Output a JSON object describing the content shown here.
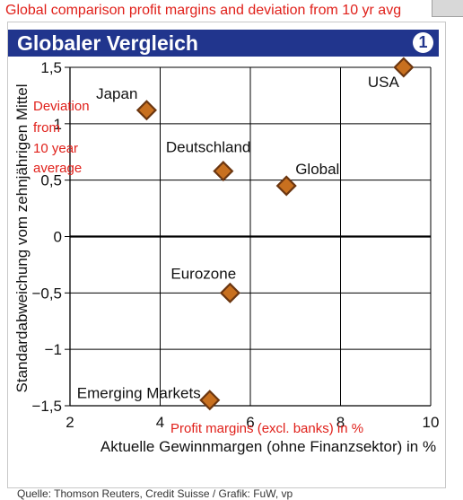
{
  "header": {
    "caption": "Global comparison profit margins and deviation from 10 yr avg",
    "title": "Globaler Vergleich",
    "figure_number": "1"
  },
  "source": "Quelle: Thomson Reuters, Credit Suisse / Grafik: FuW, vp",
  "overlays": {
    "y_note": [
      "Deviation",
      "from",
      "10 year",
      "average"
    ],
    "x_note": "Profit margins (excl. banks) in %"
  },
  "colors": {
    "title_bar": "#21358d",
    "marker_fill": "#c8701f",
    "marker_stroke": "#6b3610",
    "caption_red": "#e0201a"
  },
  "chart_data": {
    "type": "scatter",
    "xlabel": "Aktuelle Gewinnmargen (ohne Finanzsektor) in %",
    "ylabel": "Standardabweichung vom zehnjährigen Mittel",
    "xlim": [
      2,
      10
    ],
    "ylim": [
      -1.5,
      1.5
    ],
    "x_ticks": [
      2,
      4,
      6,
      8,
      10
    ],
    "x_tick_labels": [
      "2",
      "4",
      "6",
      "8",
      "10"
    ],
    "y_ticks": [
      1.5,
      1,
      0.5,
      0,
      -0.5,
      -1,
      -1.5
    ],
    "y_tick_labels": [
      "1,5",
      "1",
      "0,5",
      "0",
      "−0,5",
      "−1",
      "−1,5"
    ],
    "grid": true,
    "zero_line": true,
    "points": [
      {
        "label": "USA",
        "x": 9.4,
        "y": 1.5
      },
      {
        "label": "Japan",
        "x": 3.7,
        "y": 1.12
      },
      {
        "label": "Deutschland",
        "x": 5.4,
        "y": 0.58
      },
      {
        "label": "Global",
        "x": 6.8,
        "y": 0.45
      },
      {
        "label": "Eurozone",
        "x": 5.55,
        "y": -0.5
      },
      {
        "label": "Emerging Markets",
        "x": 5.1,
        "y": -1.45
      }
    ]
  }
}
